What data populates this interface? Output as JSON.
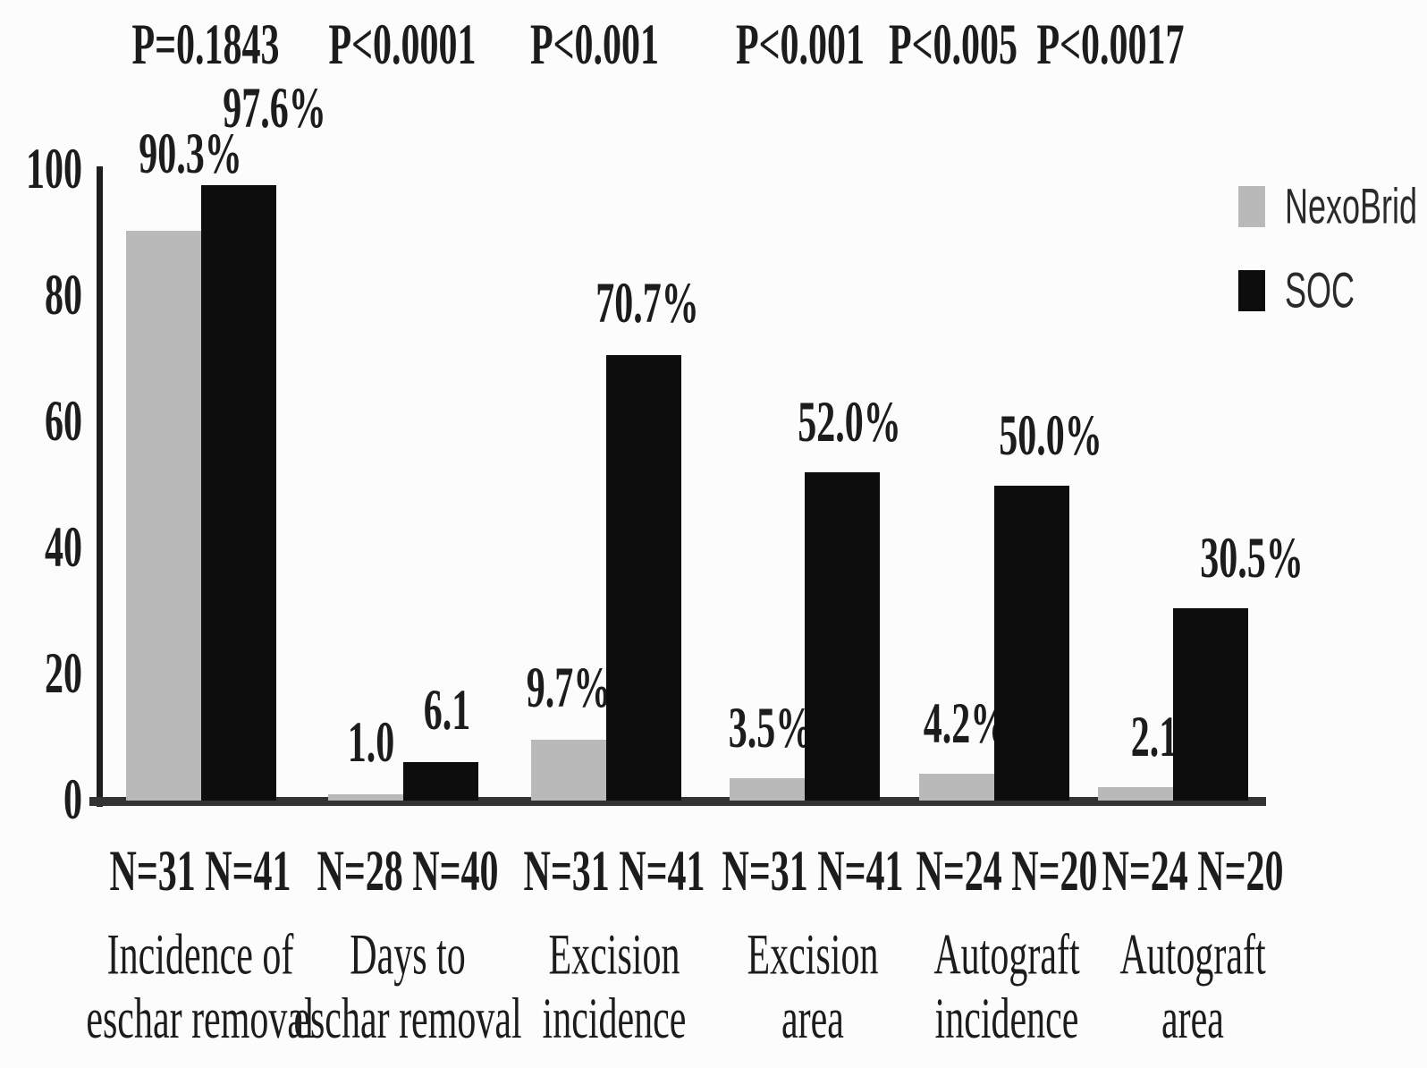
{
  "chart_data": {
    "type": "bar",
    "title": "",
    "categories": [
      "Incidence of\neschar removal",
      "Days to\neschar removal",
      "Excision\nincidence",
      "Excision\narea",
      "Autograft\nincidence",
      "Autograft\narea"
    ],
    "series": [
      {
        "name": "NexoBrid",
        "color": "#b9b9b9",
        "values": [
          90.3,
          1.0,
          9.7,
          3.5,
          4.2,
          2.1
        ],
        "value_labels": [
          "90.3%",
          "1.0",
          "9.7%",
          "3.5%",
          "4.2%",
          "2.1%"
        ]
      },
      {
        "name": "SOC",
        "color": "#0d0d0d",
        "values": [
          97.6,
          6.1,
          70.7,
          52.0,
          50.0,
          30.5
        ],
        "value_labels": [
          "97.6%",
          "6.1",
          "70.7%",
          "52.0%",
          "50.0%",
          "30.5%"
        ]
      }
    ],
    "p_values": [
      "P=0.1843",
      "P<0.0001",
      "P<0.001",
      "P<0.001",
      "P<0.005",
      "P<0.0017"
    ],
    "n_labels": [
      "N=31 N=41",
      "N=28 N=40",
      "N=31 N=41",
      "N=31 N=41",
      "N=24 N=20",
      "N=24 N=20"
    ],
    "y_ticks": [
      "0",
      "20",
      "40",
      "60",
      "80",
      "100"
    ],
    "ylim": [
      0,
      100
    ],
    "grid": false,
    "legend_position": "top-right"
  }
}
